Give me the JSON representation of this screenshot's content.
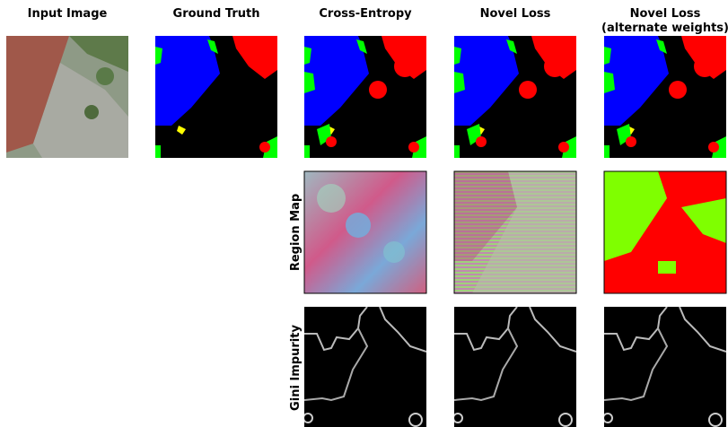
{
  "columns": [
    {
      "title": "Input Image"
    },
    {
      "title": "Ground Truth"
    },
    {
      "title": "Cross-Entropy"
    },
    {
      "title": "Novel Loss"
    },
    {
      "title": "Novel Loss",
      "subtitle": "(alternate weights)"
    }
  ],
  "rows": [
    {
      "label": "Region Map"
    },
    {
      "label": "Gini Impurity"
    }
  ]
}
